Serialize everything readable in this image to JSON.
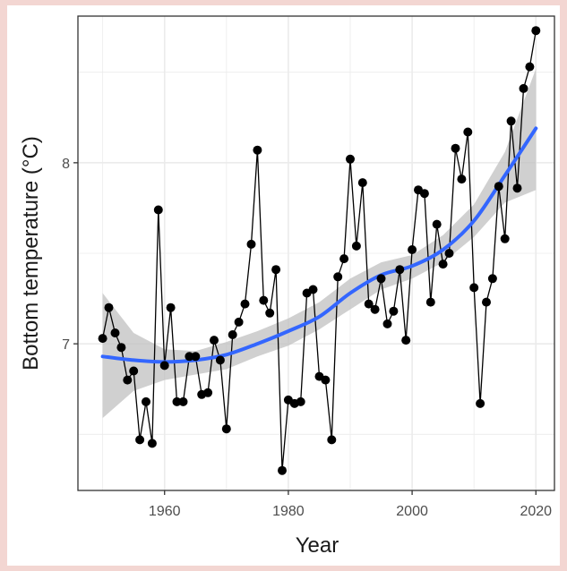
{
  "chart_data": {
    "type": "line",
    "title": "",
    "xlabel": "Year",
    "ylabel": "Bottom temperature (°C)",
    "xlim": [
      1946,
      2023
    ],
    "ylim": [
      6.19,
      8.81
    ],
    "x_ticks": [
      1960,
      1980,
      2000,
      2020
    ],
    "x_tick_labels": [
      "1960",
      "1980",
      "2000",
      "2020"
    ],
    "y_ticks": [
      7,
      8
    ],
    "y_tick_labels": [
      "7",
      "8"
    ],
    "grid": true,
    "legend": "none",
    "colors": {
      "observed": "#000000",
      "trend": "#3366ff",
      "confidence_band": "#c0c0c0",
      "grid": "#ebebeb",
      "panel_border": "#333333"
    },
    "series": [
      {
        "kind": "observed",
        "x": [
          1950,
          1951,
          1952,
          1953,
          1954,
          1955,
          1956,
          1957,
          1958,
          1959,
          1960,
          1961,
          1962,
          1963,
          1964,
          1965,
          1966,
          1967,
          1968,
          1969,
          1970,
          1971,
          1972,
          1973,
          1974,
          1975,
          1976,
          1977,
          1978,
          1979,
          1980,
          1981,
          1982,
          1983,
          1984,
          1985,
          1986,
          1987,
          1988,
          1989,
          1990,
          1991,
          1992,
          1993,
          1994,
          1995,
          1996,
          1997,
          1998,
          1999,
          2000,
          2001,
          2002,
          2003,
          2004,
          2005,
          2006,
          2007,
          2008,
          2009,
          2010,
          2011,
          2012,
          2013,
          2014,
          2015,
          2016,
          2017,
          2018,
          2019,
          2020
        ],
        "y": [
          7.03,
          7.2,
          7.06,
          6.98,
          6.8,
          6.85,
          6.47,
          6.68,
          6.45,
          7.74,
          6.88,
          7.2,
          6.68,
          6.68,
          6.93,
          6.93,
          6.72,
          6.73,
          7.02,
          6.91,
          6.53,
          7.05,
          7.12,
          7.22,
          7.55,
          8.07,
          7.24,
          7.17,
          7.41,
          6.3,
          6.69,
          6.67,
          6.68,
          7.28,
          7.3,
          6.82,
          6.8,
          6.47,
          7.37,
          7.47,
          8.02,
          7.54,
          7.89,
          7.22,
          7.19,
          7.36,
          7.11,
          7.18,
          7.41,
          7.02,
          7.52,
          7.85,
          7.83,
          7.23,
          7.66,
          7.44,
          7.5,
          8.08,
          7.91,
          8.17,
          7.31,
          6.67,
          7.23,
          7.36,
          7.87,
          7.58,
          8.23,
          7.86,
          8.41,
          8.53,
          8.73
        ]
      },
      {
        "kind": "smooth",
        "x": [
          1950,
          1955,
          1960,
          1965,
          1970,
          1975,
          1980,
          1985,
          1990,
          1995,
          2000,
          2005,
          2010,
          2015,
          2020
        ],
        "y": [
          6.93,
          6.91,
          6.9,
          6.91,
          6.94,
          7.0,
          7.07,
          7.15,
          7.28,
          7.38,
          7.43,
          7.52,
          7.68,
          7.93,
          8.19
        ],
        "ci_lower": [
          6.59,
          6.74,
          6.8,
          6.83,
          6.86,
          6.93,
          6.99,
          7.08,
          7.19,
          7.3,
          7.36,
          7.45,
          7.59,
          7.78,
          7.85
        ],
        "ci_upper": [
          7.28,
          7.06,
          6.97,
          6.96,
          7.01,
          7.07,
          7.14,
          7.23,
          7.36,
          7.45,
          7.49,
          7.6,
          7.77,
          8.06,
          8.52
        ]
      }
    ]
  }
}
